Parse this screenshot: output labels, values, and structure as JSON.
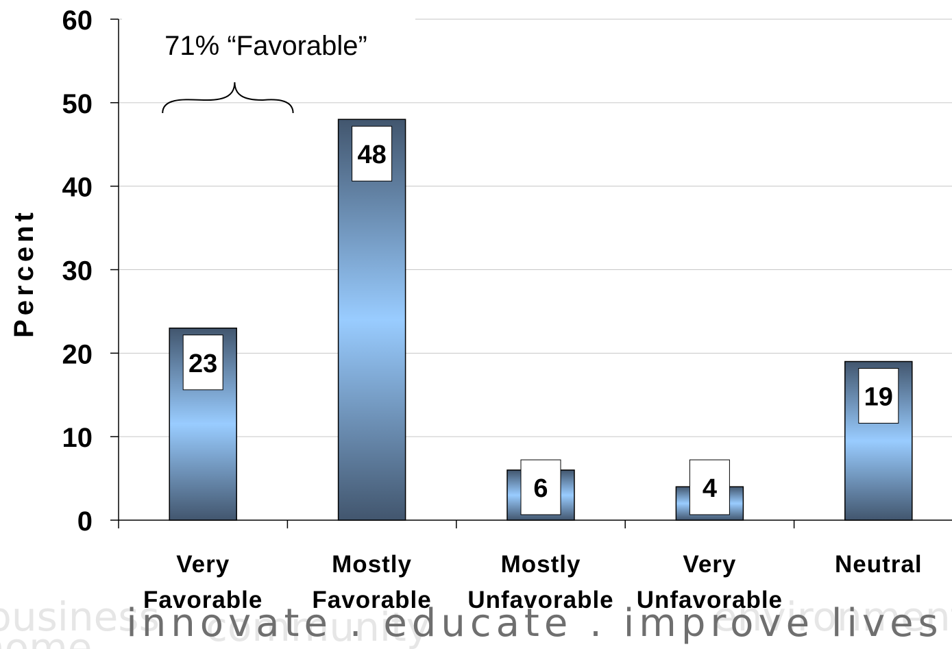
{
  "chart_data": {
    "type": "bar",
    "categories": [
      [
        "Very",
        "Favorable"
      ],
      [
        "Mostly",
        "Favorable"
      ],
      [
        "Mostly",
        "Unfavorable"
      ],
      [
        "Very",
        "Unfavorable"
      ],
      [
        "Neutral"
      ]
    ],
    "values": [
      23,
      48,
      6,
      4,
      19
    ],
    "data_labels": [
      "23",
      "48",
      "6",
      "4",
      "19"
    ],
    "ylabel": "Percent",
    "ylim": [
      0,
      60
    ],
    "yticks": [
      "0",
      "10",
      "20",
      "30",
      "40",
      "50",
      "60"
    ],
    "grid": true,
    "annotation": {
      "text": "71% “Favorable”",
      "spans_categories": [
        0,
        1
      ]
    },
    "bar_colors": {
      "dark": "#42566e",
      "light": "#99ccff"
    }
  },
  "footer": {
    "tagline": "innovate . educate . improve lives",
    "background_words": [
      "business",
      "home",
      "community",
      "environment"
    ]
  }
}
